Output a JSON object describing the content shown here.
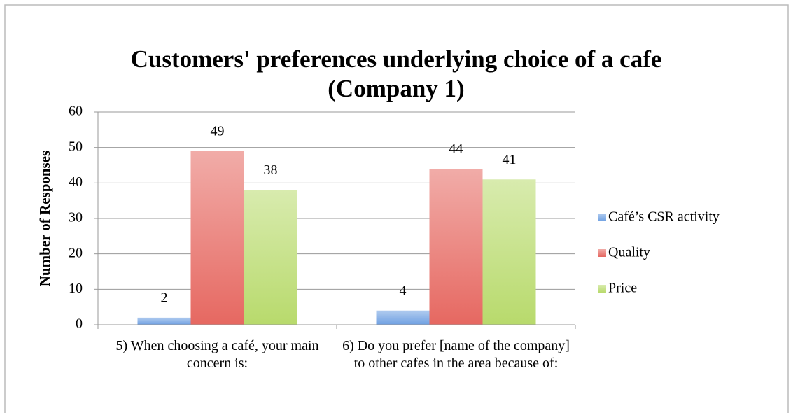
{
  "chart_data": {
    "type": "bar",
    "title": "Customers' preferences underlying choice of a cafe (Company 1)",
    "y_label": "Number of Responses",
    "categories": [
      "5) When choosing a café, your main concern is:",
      "6) Do you prefer [name of the company] to other cafes in the area because of:"
    ],
    "series": [
      {
        "name": "Café’s CSR activity",
        "color": "#6fa0e2",
        "values": [
          2,
          4
        ]
      },
      {
        "name": "Quality",
        "color": "#e66861",
        "values": [
          49,
          44
        ]
      },
      {
        "name": "Price",
        "color": "#b8da6c",
        "values": [
          38,
          41
        ]
      }
    ],
    "ylim": [
      0,
      60
    ],
    "yticks": [
      0,
      10,
      20,
      30,
      40,
      50,
      60
    ],
    "grid": true,
    "legend": "right"
  }
}
